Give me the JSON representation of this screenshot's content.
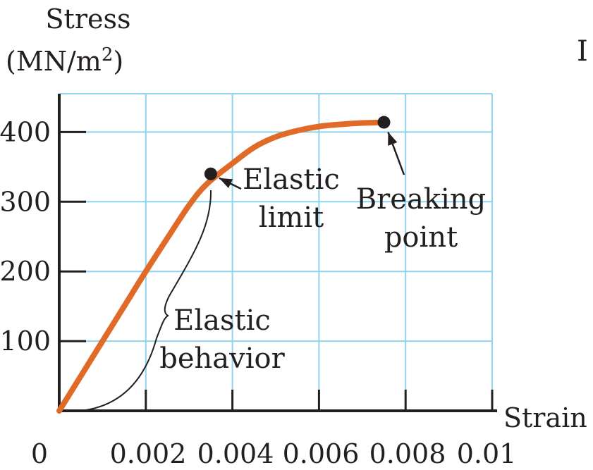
{
  "chart_data": {
    "type": "line",
    "ylabel_line1": "Stress",
    "ylabel_line2": "(MN/m",
    "ylabel_sup": "2",
    "ylabel_close": ")",
    "xlabel": "Strain",
    "clipped_text": "I",
    "x_ticks": [
      "0",
      "0.002",
      "0.004",
      "0.006",
      "0.008",
      "0.01"
    ],
    "x_tick_values": [
      0,
      0.002,
      0.004,
      0.006,
      0.008,
      0.01
    ],
    "y_ticks": [
      "100",
      "200",
      "300",
      "400"
    ],
    "y_tick_values": [
      100,
      200,
      300,
      400
    ],
    "xlim": [
      0,
      0.01
    ],
    "ylim": [
      0,
      455
    ],
    "grid": true,
    "series": [
      {
        "x": [
          0,
          0.0005,
          0.001,
          0.0015,
          0.002,
          0.0025,
          0.003,
          0.0034,
          0.004,
          0.0045,
          0.005,
          0.0055,
          0.006,
          0.0065,
          0.007,
          0.0075
        ],
        "y": [
          0,
          50,
          100,
          150,
          200,
          248,
          295,
          325,
          355,
          378,
          393,
          402,
          408,
          411,
          413,
          414
        ],
        "color": "#e06a28"
      }
    ],
    "points": [
      {
        "x": 0.0035,
        "y": 340
      },
      {
        "x": 0.0075,
        "y": 414
      }
    ],
    "annotations": [
      {
        "lines": [
          "Elastic",
          "limit"
        ]
      },
      {
        "lines": [
          "Breaking",
          "point"
        ]
      },
      {
        "lines": [
          "Elastic",
          "behavior"
        ]
      }
    ],
    "colors": {
      "grid": "#8fd3ec",
      "axis": "#231f20",
      "curve": "#e06a28",
      "text": "#231f20"
    }
  }
}
